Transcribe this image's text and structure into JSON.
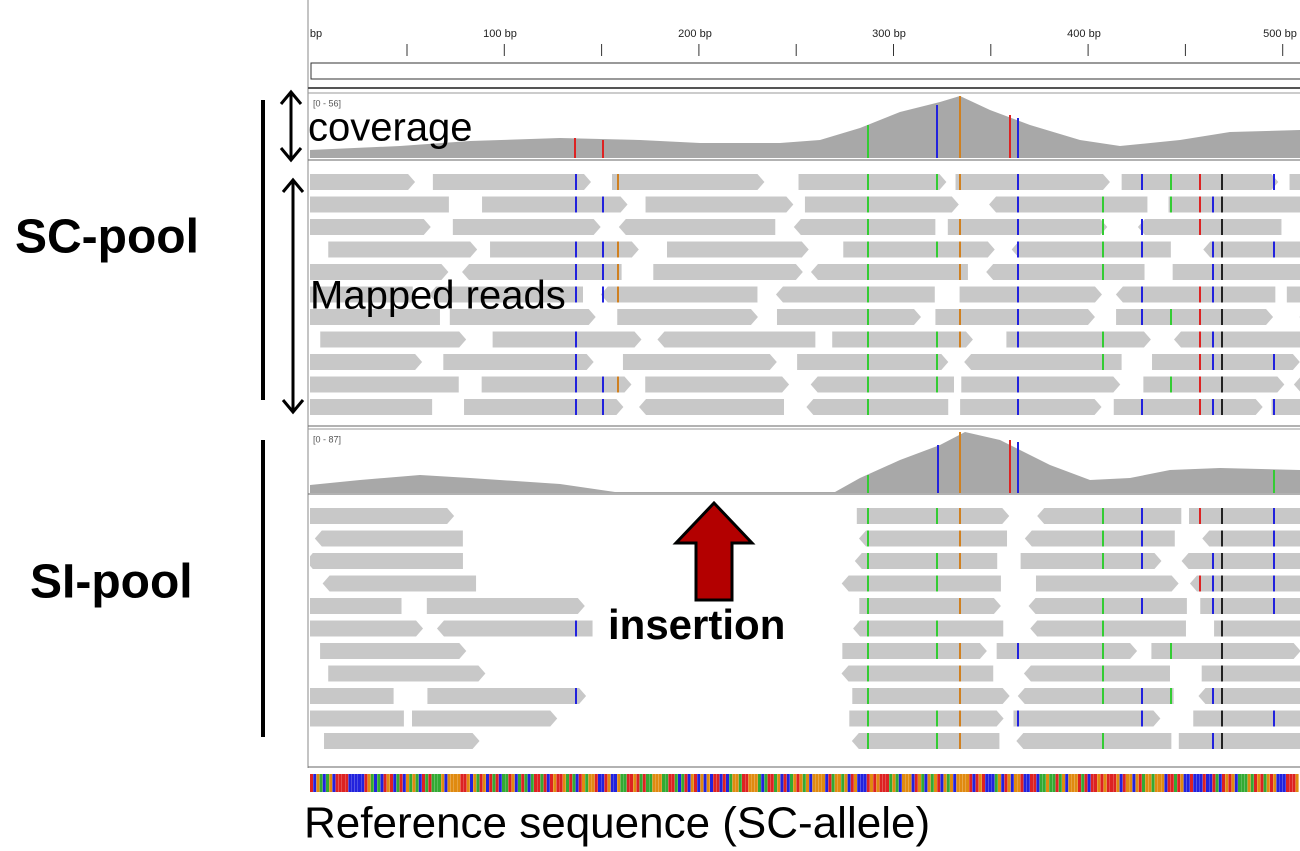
{
  "ruler": {
    "labels": [
      "bp",
      "100 bp",
      "200 bp",
      "300 bp",
      "400 bp",
      "500 bp"
    ]
  },
  "tracks": [
    {
      "name": "SC-pool",
      "range": "[0 - 56]"
    },
    {
      "name": "SI-pool",
      "range": "[0 - 87]"
    }
  ],
  "annotations": {
    "coverage": "coverage",
    "mapped_reads": "Mapped reads",
    "insertion": "insertion",
    "reference": "Reference sequence (SC-allele)"
  }
}
